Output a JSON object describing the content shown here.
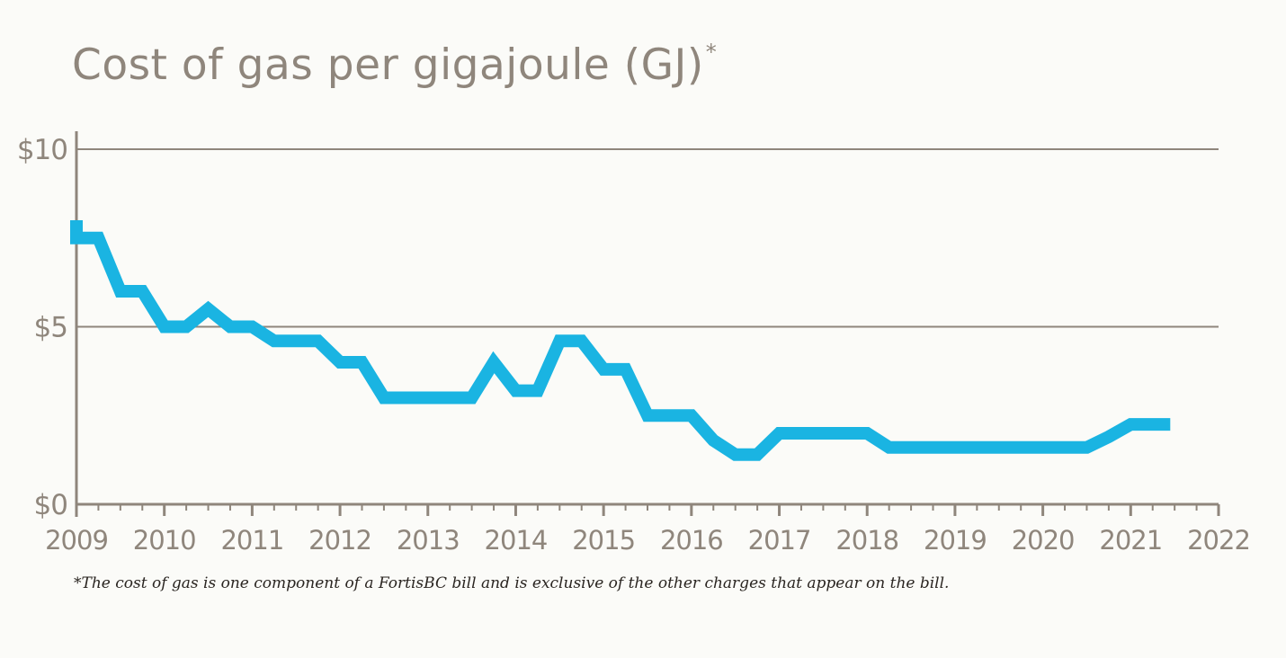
{
  "colors": {
    "line": "#1ab4e2",
    "axis": "#8f867c",
    "text": "#8f867c",
    "background": "#fbfbf8"
  },
  "chart_data": {
    "type": "line",
    "title": "Cost of gas per gigajoule (GJ)",
    "title_mark": "*",
    "footnote": "*The cost of gas is one component of a FortisBC bill and is exclusive of the other charges that appear on the bill.",
    "xlim": [
      2009,
      2022
    ],
    "ylim": [
      0,
      10
    ],
    "grid": true,
    "x_ticks": [
      "2009",
      "2010",
      "2011",
      "2012",
      "2013",
      "2014",
      "2015",
      "2016",
      "2017",
      "2018",
      "2019",
      "2020",
      "2021",
      "2022"
    ],
    "y_ticks": [
      {
        "value": 0,
        "label": "$0"
      },
      {
        "value": 5,
        "label": "$5"
      },
      {
        "value": 10,
        "label": "$10"
      }
    ],
    "series": [
      {
        "x": [
          2009.0,
          2009.0,
          2009.25,
          2009.5,
          2009.75,
          2010.0,
          2010.25,
          2010.5,
          2010.75,
          2011.0,
          2011.25,
          2011.5,
          2011.75,
          2012.0,
          2012.25,
          2012.5,
          2012.75,
          2013.0,
          2013.25,
          2013.5,
          2013.75,
          2014.0,
          2014.25,
          2014.5,
          2014.75,
          2015.0,
          2015.25,
          2015.5,
          2015.75,
          2016.0,
          2016.25,
          2016.5,
          2016.75,
          2017.0,
          2017.25,
          2017.5,
          2017.75,
          2018.0,
          2018.25,
          2018.5,
          2018.75,
          2019.0,
          2019.25,
          2019.5,
          2019.75,
          2020.0,
          2020.25,
          2020.5,
          2020.75,
          2021.0,
          2021.25,
          2021.45
        ],
        "y": [
          8.0,
          7.5,
          7.5,
          6.0,
          6.0,
          5.0,
          5.0,
          5.5,
          5.0,
          5.0,
          4.6,
          4.6,
          4.6,
          4.0,
          4.0,
          3.0,
          3.0,
          3.0,
          3.0,
          3.0,
          4.0,
          3.2,
          3.2,
          4.6,
          4.6,
          3.8,
          3.8,
          2.5,
          2.5,
          2.5,
          1.8,
          1.4,
          1.4,
          2.0,
          2.0,
          2.0,
          2.0,
          2.0,
          1.6,
          1.6,
          1.6,
          1.6,
          1.6,
          1.6,
          1.6,
          1.6,
          1.6,
          1.6,
          1.9,
          2.25,
          2.25,
          2.25
        ]
      }
    ]
  }
}
